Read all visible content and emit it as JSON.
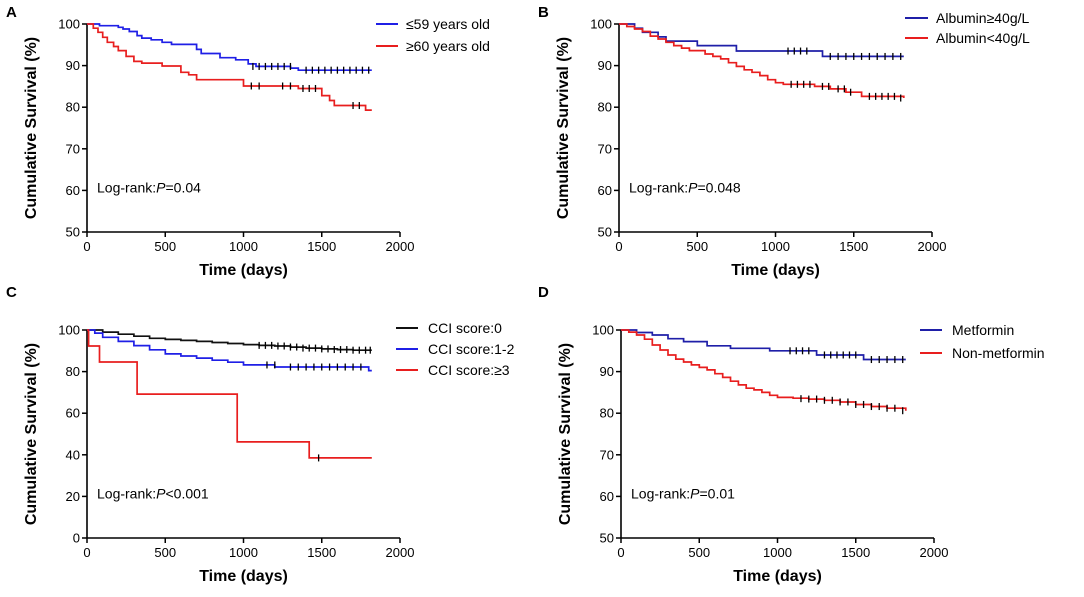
{
  "chart_data": [
    {
      "panel": "A",
      "type": "line",
      "xlabel": "Time (days)",
      "ylabel": "Cumulative Survival (%)",
      "xlim": [
        0,
        2000
      ],
      "ylim": [
        50,
        100
      ],
      "xticks": [
        0,
        500,
        1000,
        1500,
        2000
      ],
      "yticks": [
        50,
        60,
        70,
        80,
        90,
        100
      ],
      "annotation": {
        "prefix": "Log-rank:",
        "p": "P",
        "suffix": "=0.04"
      },
      "legend_position": "top-right",
      "series": [
        {
          "name": "≤59 years old",
          "color": "#1F1FE6",
          "x": [
            0,
            80,
            150,
            200,
            230,
            270,
            320,
            350,
            410,
            480,
            540,
            620,
            700,
            730,
            780,
            850,
            880,
            950,
            1030,
            1080,
            1200,
            1300,
            1350,
            1820
          ],
          "y": [
            100,
            99.6,
            99.6,
            99.2,
            98.8,
            98.2,
            97.2,
            96.6,
            96.2,
            95.6,
            95.1,
            95.1,
            93.9,
            92.9,
            92.9,
            91.9,
            91.9,
            91.4,
            90.4,
            89.8,
            89.8,
            89.4,
            88.9,
            88.9
          ],
          "censor_x": [
            1060,
            1100,
            1140,
            1180,
            1220,
            1260,
            1300,
            1400,
            1440,
            1480,
            1520,
            1560,
            1600,
            1640,
            1680,
            1720,
            1760,
            1800
          ],
          "censor_y": [
            89.8,
            89.8,
            89.8,
            89.8,
            89.8,
            89.8,
            89.8,
            88.9,
            88.9,
            88.9,
            88.9,
            88.9,
            88.9,
            88.9,
            88.9,
            88.9,
            88.9,
            88.9
          ]
        },
        {
          "name": "≥60 years old",
          "color": "#E81E1E",
          "x": [
            0,
            40,
            70,
            100,
            130,
            170,
            200,
            250,
            300,
            350,
            480,
            600,
            650,
            700,
            1000,
            1100,
            1200,
            1350,
            1500,
            1550,
            1580,
            1780,
            1820
          ],
          "y": [
            100,
            99,
            98,
            96.8,
            95.6,
            94.6,
            93.6,
            92.2,
            91,
            90.6,
            89.9,
            88.4,
            87.8,
            86.6,
            85.1,
            85.1,
            85.1,
            84.5,
            82.8,
            81.6,
            80.4,
            79.3,
            79.3
          ],
          "censor_x": [
            1050,
            1100,
            1250,
            1300,
            1380,
            1420,
            1460,
            1700,
            1740
          ],
          "censor_y": [
            85.1,
            85.1,
            85.1,
            85.1,
            84.5,
            84.5,
            84.5,
            80.4,
            80.4
          ]
        }
      ]
    },
    {
      "panel": "B",
      "type": "line",
      "xlabel": "Time (days)",
      "ylabel": "Cumulative Survival (%)",
      "xlim": [
        0,
        2000
      ],
      "ylim": [
        50,
        100
      ],
      "xticks": [
        0,
        500,
        1000,
        1500,
        2000
      ],
      "yticks": [
        50,
        60,
        70,
        80,
        90,
        100
      ],
      "annotation": {
        "prefix": "Log-rank:",
        "p": "P",
        "suffix": "=0.048"
      },
      "legend_position": "top-right",
      "series": [
        {
          "name": "Albumin≥40g/L",
          "color": "#1F1FA8",
          "x": [
            0,
            100,
            150,
            250,
            300,
            450,
            500,
            750,
            1250,
            1300,
            1820
          ],
          "y": [
            100,
            99,
            98,
            96.9,
            95.9,
            95.9,
            94.8,
            93.5,
            93.5,
            92.2,
            92.2
          ],
          "censor_x": [
            1080,
            1120,
            1160,
            1200,
            1350,
            1400,
            1450,
            1500,
            1550,
            1600,
            1650,
            1700,
            1750,
            1800
          ],
          "censor_y": [
            93.5,
            93.5,
            93.5,
            93.5,
            92.2,
            92.2,
            92.2,
            92.2,
            92.2,
            92.2,
            92.2,
            92.2,
            92.2,
            92.2
          ]
        },
        {
          "name": "Albumin<40g/L",
          "color": "#E81E1E",
          "x": [
            0,
            50,
            100,
            150,
            200,
            250,
            300,
            350,
            400,
            450,
            550,
            600,
            650,
            700,
            750,
            800,
            850,
            900,
            950,
            1000,
            1050,
            1150,
            1250,
            1350,
            1450,
            1550,
            1820
          ],
          "y": [
            100,
            99.4,
            98.8,
            98.2,
            97.1,
            96.4,
            95.6,
            94.8,
            94.2,
            93.6,
            92.8,
            92.2,
            91.6,
            90.7,
            89.8,
            89,
            88.4,
            87.6,
            86.6,
            85.9,
            85.5,
            85.5,
            85,
            84.4,
            83.6,
            82.6,
            82.2
          ],
          "censor_x": [
            1100,
            1140,
            1180,
            1220,
            1300,
            1340,
            1400,
            1440,
            1480,
            1600,
            1640,
            1680,
            1720,
            1760,
            1800
          ],
          "censor_y": [
            85.5,
            85.5,
            85.5,
            85.5,
            85,
            85,
            84.4,
            84.4,
            83.6,
            82.6,
            82.6,
            82.6,
            82.6,
            82.6,
            82.2
          ]
        }
      ]
    },
    {
      "panel": "C",
      "type": "line",
      "xlabel": "Time (days)",
      "ylabel": "Cumulative Survival (%)",
      "xlim": [
        0,
        2000
      ],
      "ylim": [
        0,
        100
      ],
      "xticks": [
        0,
        500,
        1000,
        1500,
        2000
      ],
      "yticks": [
        0,
        20,
        40,
        60,
        80,
        100
      ],
      "annotation": {
        "prefix": "Log-rank:",
        "p": "P",
        "suffix": "<0.001"
      },
      "legend_position": "top-right",
      "series": [
        {
          "name": "CCI score:0",
          "color": "#111111",
          "x": [
            0,
            100,
            200,
            300,
            400,
            500,
            600,
            700,
            800,
            900,
            1000,
            1100,
            1200,
            1300,
            1400,
            1500,
            1600,
            1700,
            1820
          ],
          "y": [
            100,
            99,
            98,
            97,
            96,
            95.5,
            95,
            94.5,
            94,
            93.5,
            93,
            92.6,
            92.3,
            91.8,
            91.3,
            90.9,
            90.6,
            90.3,
            90.3
          ],
          "censor_x": [
            1100,
            1140,
            1180,
            1220,
            1260,
            1300,
            1340,
            1380,
            1420,
            1460,
            1500,
            1540,
            1580,
            1620,
            1660,
            1700,
            1740,
            1780,
            1810
          ],
          "censor_y": [
            92.6,
            92.6,
            92.6,
            92.3,
            92.3,
            91.8,
            91.8,
            91.3,
            91.3,
            91.3,
            90.9,
            90.9,
            90.6,
            90.6,
            90.6,
            90.3,
            90.3,
            90.3,
            90.3
          ]
        },
        {
          "name": "CCI score:1-2",
          "color": "#1F1FE6",
          "x": [
            0,
            50,
            100,
            200,
            300,
            400,
            500,
            600,
            700,
            800,
            900,
            1000,
            1200,
            1800,
            1820
          ],
          "y": [
            100,
            98.5,
            96.5,
            94.5,
            92.5,
            90.5,
            88.5,
            87.5,
            86.5,
            85.5,
            84.5,
            83.2,
            82.2,
            80.5,
            80.5
          ],
          "censor_x": [
            1150,
            1200,
            1300,
            1350,
            1400,
            1450,
            1500,
            1550,
            1600,
            1650,
            1700,
            1750
          ],
          "censor_y": [
            83.2,
            83.2,
            82.2,
            82.2,
            82.2,
            82.2,
            82.2,
            82.2,
            82.2,
            82.2,
            82.2,
            82.2
          ]
        },
        {
          "name": "CCI score:≥3",
          "color": "#E81E1E",
          "x": [
            0,
            10,
            80,
            280,
            320,
            920,
            960,
            1420,
            1820
          ],
          "y": [
            100,
            92.3,
            84.6,
            84.6,
            69.2,
            69.2,
            46.2,
            38.5,
            38.5
          ],
          "censor_x": [
            1480
          ],
          "censor_y": [
            38.5
          ]
        }
      ]
    },
    {
      "panel": "D",
      "type": "line",
      "xlabel": "Time (days)",
      "ylabel": "Cumulative Survival (%)",
      "xlim": [
        0,
        2000
      ],
      "ylim": [
        50,
        100
      ],
      "xticks": [
        0,
        500,
        1000,
        1500,
        2000
      ],
      "yticks": [
        50,
        60,
        70,
        80,
        90,
        100
      ],
      "annotation": {
        "prefix": "Log-rank:",
        "p": "P",
        "suffix": "=0.01"
      },
      "legend_position": "top-right",
      "series": [
        {
          "name": "Metformin",
          "color": "#1F1FA8",
          "x": [
            0,
            100,
            200,
            300,
            400,
            550,
            700,
            950,
            1250,
            1550,
            1820
          ],
          "y": [
            100,
            99.4,
            98.8,
            97.9,
            97.2,
            96.2,
            95.6,
            95,
            94,
            92.9,
            92.9
          ],
          "censor_x": [
            1080,
            1120,
            1160,
            1200,
            1300,
            1340,
            1380,
            1420,
            1460,
            1500,
            1600,
            1650,
            1700,
            1750,
            1800
          ],
          "censor_y": [
            95,
            95,
            95,
            95,
            94,
            94,
            94,
            94,
            94,
            94,
            92.9,
            92.9,
            92.9,
            92.9,
            92.9
          ]
        },
        {
          "name": "Non-metformin",
          "color": "#E81E1E",
          "x": [
            0,
            50,
            100,
            150,
            200,
            250,
            300,
            350,
            400,
            450,
            500,
            550,
            600,
            650,
            700,
            750,
            800,
            850,
            900,
            950,
            1000,
            1100,
            1200,
            1300,
            1400,
            1500,
            1600,
            1700,
            1820
          ],
          "y": [
            100,
            99.5,
            98.8,
            97.8,
            96.4,
            95.2,
            94,
            93,
            92.3,
            91.6,
            91,
            90.4,
            89.5,
            88.6,
            87.7,
            86.8,
            86,
            85.6,
            85,
            84.3,
            83.8,
            83.6,
            83.4,
            83.1,
            82.7,
            82.1,
            81.6,
            81.2,
            80.6
          ],
          "censor_x": [
            1150,
            1200,
            1250,
            1300,
            1350,
            1400,
            1450,
            1500,
            1550,
            1600,
            1650,
            1700,
            1750,
            1800
          ],
          "censor_y": [
            83.5,
            83.4,
            83.4,
            83.1,
            83.1,
            82.7,
            82.7,
            82.1,
            82.1,
            81.6,
            81.6,
            81.2,
            81.2,
            80.6
          ]
        }
      ]
    }
  ]
}
